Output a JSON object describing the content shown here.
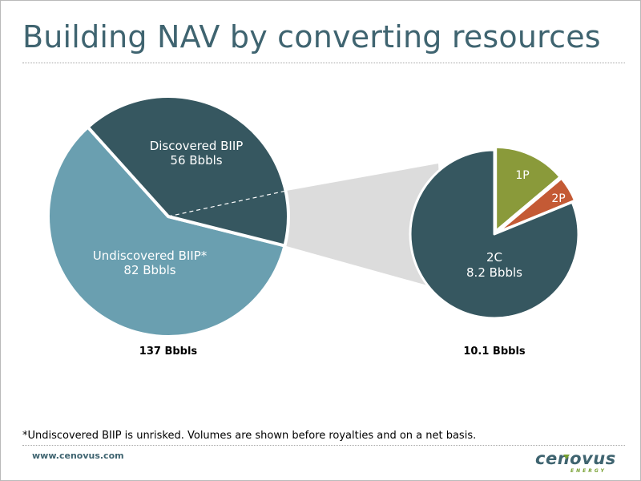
{
  "title": "Building NAV by converting resources",
  "footnote": "*Undiscovered BIIP is unrisked. Volumes are shown before royalties and on a net basis.",
  "website": "www.cenovus.com",
  "logo": {
    "word": "cenovus",
    "sub": "ENERGY"
  },
  "colors": {
    "discovered": "#365760",
    "undiscovered": "#6a9fb0",
    "p1": "#8a9a3a",
    "p2": "#c45a35",
    "c2": "#365760",
    "connector": "#dcdcdc",
    "title": "#3f6470"
  },
  "chart_data": [
    {
      "type": "pie",
      "total_label": "137 Bbbls",
      "slices": [
        {
          "name": "Discovered BIIP",
          "value": 56,
          "value_label": "56 Bbbls"
        },
        {
          "name": "Undiscovered BIIP*",
          "value": 82,
          "value_label": "82 Bbbls"
        }
      ]
    },
    {
      "type": "pie",
      "total_label": "10.1 Bbbls",
      "slices": [
        {
          "name": "1P",
          "value": 1.4
        },
        {
          "name": "2P",
          "value": 0.5
        },
        {
          "name": "2C",
          "value": 8.2,
          "value_label": "8.2 Bbbls"
        }
      ]
    }
  ]
}
